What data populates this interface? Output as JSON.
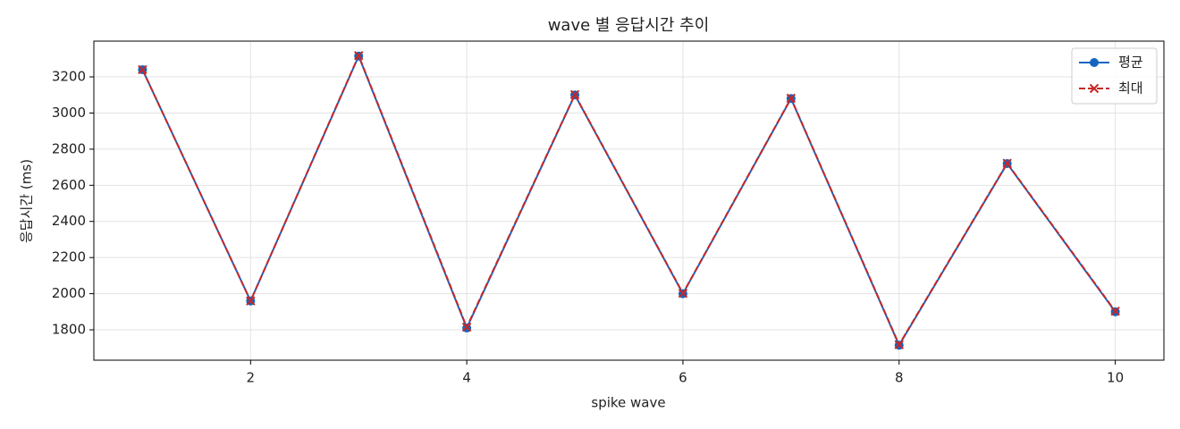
{
  "chart_data": {
    "type": "line",
    "title": "wave 별 응답시간 추이",
    "x_label": "spike wave",
    "y_label": "응답시간 (ms)",
    "x": [
      1,
      2,
      3,
      4,
      5,
      6,
      7,
      8,
      9,
      10
    ],
    "series": [
      {
        "name": "평균",
        "color": "#1565c0",
        "marker": "o",
        "linestyle": "solid",
        "values": [
          3240,
          1960,
          3315,
          1810,
          3100,
          2000,
          3080,
          1715,
          2720,
          1900
        ]
      },
      {
        "name": "최대",
        "color": "#c62828",
        "marker": "x",
        "linestyle": "dashed",
        "values": [
          3240,
          1960,
          3318,
          1815,
          3102,
          2002,
          3082,
          1718,
          2722,
          1903
        ]
      }
    ],
    "xlim": [
      0.55,
      10.45
    ],
    "ylim": [
      1632,
      3398
    ],
    "xticks": [
      2,
      4,
      6,
      8,
      10
    ],
    "yticks": [
      1800,
      2000,
      2200,
      2400,
      2600,
      2800,
      3000,
      3200
    ],
    "grid": true,
    "legend": "upper right"
  }
}
